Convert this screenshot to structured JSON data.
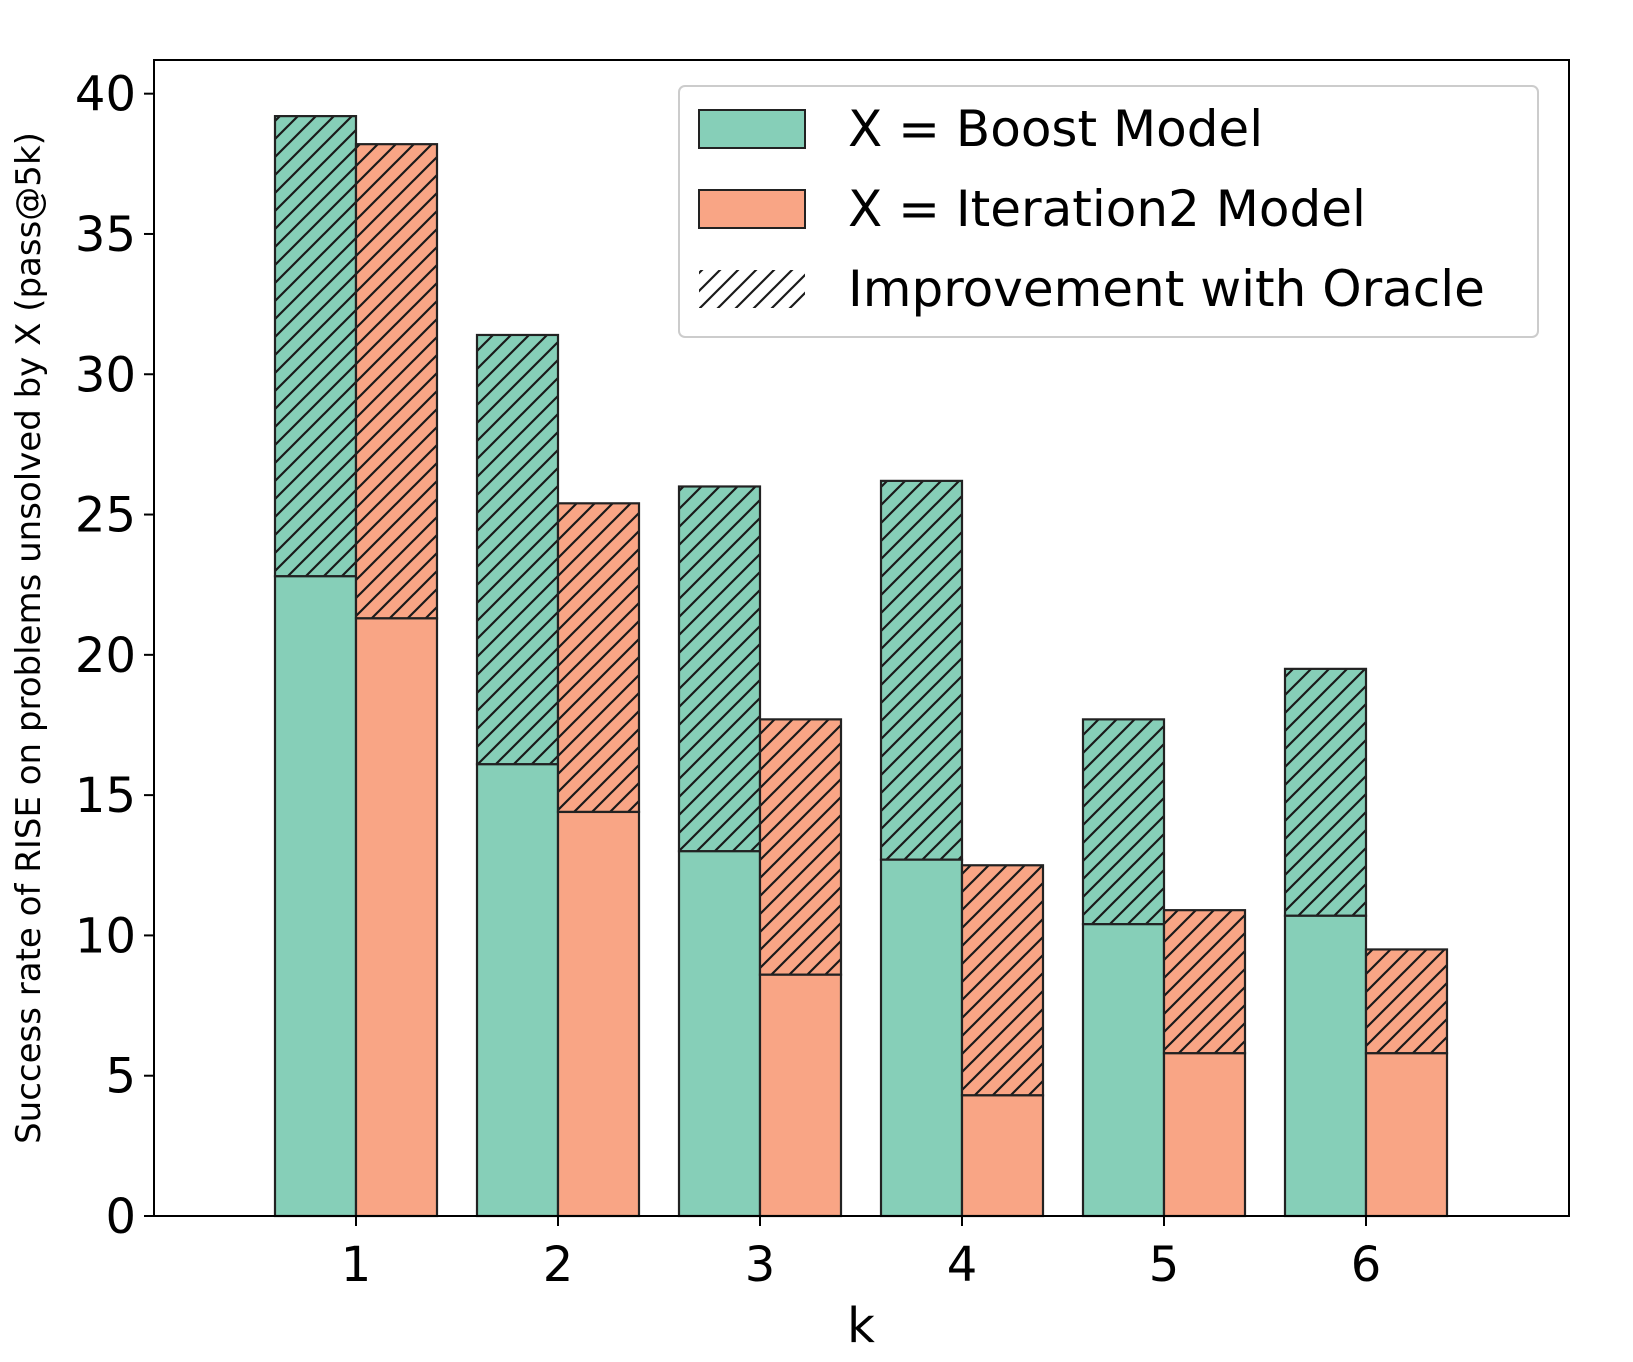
{
  "chart_data": {
    "type": "bar",
    "subtype": "grouped-stacked",
    "title": "",
    "xlabel": "k",
    "ylabel": "Success rate of RISE on problems unsolved by X (pass@5k)",
    "categories": [
      "1",
      "2",
      "3",
      "4",
      "5",
      "6"
    ],
    "ylim": [
      0,
      41.2
    ],
    "yticks": [
      0,
      5,
      10,
      15,
      20,
      25,
      30,
      35,
      40
    ],
    "yticklabels": [
      "0",
      "5",
      "10",
      "15",
      "20",
      "25",
      "30",
      "35",
      "40"
    ],
    "grid": false,
    "legend_position": "top-right",
    "series": [
      {
        "name": "X = Boost Model",
        "color": "#86cfb8",
        "base_values": [
          22.8,
          16.1,
          13.0,
          12.7,
          10.4,
          10.7
        ],
        "total_values": [
          39.2,
          31.4,
          26.0,
          26.2,
          17.7,
          19.5
        ]
      },
      {
        "name": "X = Iteration2 Model",
        "color": "#f9a585",
        "base_values": [
          21.3,
          14.4,
          8.6,
          4.3,
          5.8,
          5.8
        ],
        "total_values": [
          38.2,
          25.4,
          17.7,
          12.5,
          10.9,
          9.5
        ]
      }
    ],
    "hatch_legend": "Improvement with Oracle",
    "edge_color": "#222222"
  }
}
